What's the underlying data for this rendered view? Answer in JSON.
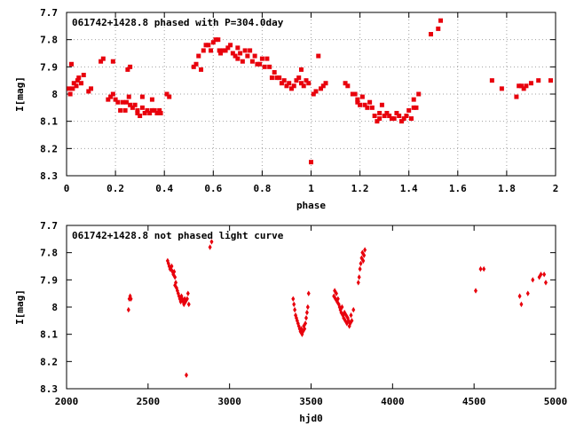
{
  "chart_data": [
    {
      "type": "scatter",
      "title": "061742+1428.8 phased with P=304.0day",
      "xlabel": "phase",
      "ylabel": "I[mag]",
      "xlim": [
        0,
        2
      ],
      "ylim": [
        8.3,
        7.7
      ],
      "y_inverted": true,
      "grid": true,
      "marker": "filled-square",
      "color": "#e8000c",
      "xticks": [
        "0",
        "0.2",
        "0.4",
        "0.6",
        "0.8",
        "1",
        "1.2",
        "1.4",
        "1.6",
        "1.8",
        "2"
      ],
      "yticks": [
        "7.7",
        "7.8",
        "7.9",
        "8",
        "8.1",
        "8.2",
        "8.3"
      ],
      "points": [
        [
          0.01,
          7.98
        ],
        [
          0.015,
          8.0
        ],
        [
          0.02,
          7.89
        ],
        [
          0.025,
          7.98
        ],
        [
          0.03,
          7.96
        ],
        [
          0.04,
          7.97
        ],
        [
          0.045,
          7.95
        ],
        [
          0.05,
          7.94
        ],
        [
          0.06,
          7.96
        ],
        [
          0.07,
          7.93
        ],
        [
          0.09,
          7.99
        ],
        [
          0.1,
          7.98
        ],
        [
          0.14,
          7.88
        ],
        [
          0.15,
          7.87
        ],
        [
          0.17,
          8.02
        ],
        [
          0.18,
          8.01
        ],
        [
          0.19,
          8.0
        ],
        [
          0.19,
          7.88
        ],
        [
          0.2,
          8.02
        ],
        [
          0.21,
          8.03
        ],
        [
          0.22,
          8.06
        ],
        [
          0.23,
          8.03
        ],
        [
          0.24,
          8.06
        ],
        [
          0.245,
          8.03
        ],
        [
          0.25,
          7.91
        ],
        [
          0.255,
          8.01
        ],
        [
          0.26,
          7.9
        ],
        [
          0.26,
          8.04
        ],
        [
          0.27,
          8.05
        ],
        [
          0.28,
          8.04
        ],
        [
          0.29,
          8.07
        ],
        [
          0.29,
          8.06
        ],
        [
          0.3,
          8.08
        ],
        [
          0.31,
          8.05
        ],
        [
          0.31,
          8.01
        ],
        [
          0.32,
          8.07
        ],
        [
          0.33,
          8.06
        ],
        [
          0.34,
          8.07
        ],
        [
          0.35,
          8.06
        ],
        [
          0.35,
          8.02
        ],
        [
          0.36,
          8.06
        ],
        [
          0.37,
          8.07
        ],
        [
          0.38,
          8.06
        ],
        [
          0.385,
          8.07
        ],
        [
          0.41,
          8.0
        ],
        [
          0.42,
          8.01
        ],
        [
          0.52,
          7.9
        ],
        [
          0.53,
          7.89
        ],
        [
          0.54,
          7.86
        ],
        [
          0.55,
          7.91
        ],
        [
          0.56,
          7.84
        ],
        [
          0.57,
          7.82
        ],
        [
          0.58,
          7.82
        ],
        [
          0.59,
          7.84
        ],
        [
          0.6,
          7.81
        ],
        [
          0.61,
          7.8
        ],
        [
          0.62,
          7.8
        ],
        [
          0.625,
          7.84
        ],
        [
          0.63,
          7.85
        ],
        [
          0.64,
          7.84
        ],
        [
          0.65,
          7.84
        ],
        [
          0.66,
          7.83
        ],
        [
          0.67,
          7.82
        ],
        [
          0.68,
          7.85
        ],
        [
          0.69,
          7.86
        ],
        [
          0.7,
          7.83
        ],
        [
          0.7,
          7.87
        ],
        [
          0.71,
          7.85
        ],
        [
          0.72,
          7.88
        ],
        [
          0.73,
          7.84
        ],
        [
          0.74,
          7.86
        ],
        [
          0.75,
          7.84
        ],
        [
          0.76,
          7.88
        ],
        [
          0.77,
          7.86
        ],
        [
          0.78,
          7.89
        ],
        [
          0.79,
          7.89
        ],
        [
          0.8,
          7.87
        ],
        [
          0.81,
          7.9
        ],
        [
          0.82,
          7.87
        ],
        [
          0.83,
          7.9
        ],
        [
          0.84,
          7.94
        ],
        [
          0.85,
          7.92
        ],
        [
          0.86,
          7.94
        ],
        [
          0.87,
          7.94
        ],
        [
          0.88,
          7.96
        ],
        [
          0.89,
          7.95
        ],
        [
          0.9,
          7.97
        ],
        [
          0.91,
          7.96
        ],
        [
          0.92,
          7.98
        ],
        [
          0.93,
          7.97
        ],
        [
          0.94,
          7.95
        ],
        [
          0.95,
          7.94
        ],
        [
          0.96,
          7.96
        ],
        [
          0.96,
          7.91
        ],
        [
          0.97,
          7.97
        ],
        [
          0.98,
          7.95
        ],
        [
          0.99,
          7.96
        ],
        [
          1.0,
          8.25
        ],
        [
          1.01,
          8.0
        ],
        [
          1.02,
          7.99
        ],
        [
          1.03,
          7.86
        ],
        [
          1.04,
          7.98
        ],
        [
          1.05,
          7.97
        ],
        [
          1.06,
          7.96
        ],
        [
          1.14,
          7.96
        ],
        [
          1.15,
          7.97
        ],
        [
          1.17,
          8.0
        ],
        [
          1.18,
          8.0
        ],
        [
          1.19,
          8.03
        ],
        [
          1.19,
          8.02
        ],
        [
          1.2,
          8.04
        ],
        [
          1.21,
          8.01
        ],
        [
          1.22,
          8.04
        ],
        [
          1.23,
          8.05
        ],
        [
          1.24,
          8.03
        ],
        [
          1.25,
          8.05
        ],
        [
          1.26,
          8.08
        ],
        [
          1.27,
          8.1
        ],
        [
          1.28,
          8.09
        ],
        [
          1.28,
          8.07
        ],
        [
          1.29,
          8.04
        ],
        [
          1.3,
          8.08
        ],
        [
          1.31,
          8.07
        ],
        [
          1.32,
          8.08
        ],
        [
          1.33,
          8.09
        ],
        [
          1.34,
          8.09
        ],
        [
          1.35,
          8.07
        ],
        [
          1.36,
          8.08
        ],
        [
          1.37,
          8.1
        ],
        [
          1.38,
          8.09
        ],
        [
          1.39,
          8.08
        ],
        [
          1.4,
          8.06
        ],
        [
          1.41,
          8.09
        ],
        [
          1.42,
          8.05
        ],
        [
          1.42,
          8.02
        ],
        [
          1.43,
          8.05
        ],
        [
          1.44,
          8.0
        ],
        [
          1.49,
          7.78
        ],
        [
          1.52,
          7.76
        ],
        [
          1.53,
          7.73
        ],
        [
          1.74,
          7.95
        ],
        [
          1.78,
          7.98
        ],
        [
          1.84,
          8.01
        ],
        [
          1.85,
          7.97
        ],
        [
          1.86,
          7.97
        ],
        [
          1.87,
          7.98
        ],
        [
          1.88,
          7.97
        ],
        [
          1.9,
          7.96
        ],
        [
          1.93,
          7.95
        ],
        [
          1.98,
          7.95
        ]
      ]
    },
    {
      "type": "scatter",
      "title": "061742+1428.8 not phased light curve",
      "xlabel": "hjd0",
      "ylabel": "I[mag]",
      "xlim": [
        2000,
        5000
      ],
      "ylim": [
        8.3,
        7.7
      ],
      "y_inverted": true,
      "grid": false,
      "marker": "filled-diamond",
      "color": "#e8000c",
      "xticks": [
        "2000",
        "2500",
        "3000",
        "3500",
        "4000",
        "4500",
        "5000"
      ],
      "yticks": [
        "7.7",
        "7.8",
        "7.9",
        "8",
        "8.1",
        "8.2",
        "8.3"
      ],
      "points": [
        [
          2380,
          8.01
        ],
        [
          2385,
          7.97
        ],
        [
          2390,
          7.96
        ],
        [
          2395,
          7.97
        ],
        [
          2620,
          7.83
        ],
        [
          2625,
          7.84
        ],
        [
          2630,
          7.85
        ],
        [
          2635,
          7.86
        ],
        [
          2640,
          7.86
        ],
        [
          2645,
          7.85
        ],
        [
          2650,
          7.87
        ],
        [
          2655,
          7.88
        ],
        [
          2660,
          7.87
        ],
        [
          2665,
          7.89
        ],
        [
          2665,
          7.92
        ],
        [
          2670,
          7.91
        ],
        [
          2675,
          7.93
        ],
        [
          2680,
          7.94
        ],
        [
          2685,
          7.95
        ],
        [
          2690,
          7.96
        ],
        [
          2695,
          7.97
        ],
        [
          2700,
          7.98
        ],
        [
          2705,
          7.96
        ],
        [
          2710,
          7.97
        ],
        [
          2715,
          7.98
        ],
        [
          2720,
          7.99
        ],
        [
          2725,
          7.97
        ],
        [
          2730,
          7.98
        ],
        [
          2735,
          8.25
        ],
        [
          2740,
          7.97
        ],
        [
          2745,
          7.95
        ],
        [
          2750,
          7.99
        ],
        [
          2880,
          7.78
        ],
        [
          2890,
          7.76
        ],
        [
          3390,
          7.97
        ],
        [
          3395,
          7.99
        ],
        [
          3400,
          8.01
        ],
        [
          3405,
          8.03
        ],
        [
          3410,
          8.04
        ],
        [
          3415,
          8.05
        ],
        [
          3420,
          8.06
        ],
        [
          3425,
          8.07
        ],
        [
          3430,
          8.08
        ],
        [
          3435,
          8.09
        ],
        [
          3440,
          8.08
        ],
        [
          3445,
          8.1
        ],
        [
          3450,
          8.09
        ],
        [
          3455,
          8.07
        ],
        [
          3460,
          8.08
        ],
        [
          3465,
          8.06
        ],
        [
          3470,
          8.04
        ],
        [
          3475,
          8.02
        ],
        [
          3480,
          8.0
        ],
        [
          3485,
          7.95
        ],
        [
          3640,
          7.96
        ],
        [
          3645,
          7.94
        ],
        [
          3650,
          7.97
        ],
        [
          3655,
          7.95
        ],
        [
          3660,
          7.98
        ],
        [
          3665,
          7.97
        ],
        [
          3670,
          7.99
        ],
        [
          3675,
          8.0
        ],
        [
          3680,
          8.01
        ],
        [
          3685,
          8.02
        ],
        [
          3690,
          8.0
        ],
        [
          3695,
          8.03
        ],
        [
          3700,
          8.04
        ],
        [
          3705,
          8.02
        ],
        [
          3710,
          8.05
        ],
        [
          3715,
          8.03
        ],
        [
          3720,
          8.06
        ],
        [
          3725,
          8.04
        ],
        [
          3730,
          8.05
        ],
        [
          3735,
          8.07
        ],
        [
          3740,
          8.06
        ],
        [
          3745,
          8.03
        ],
        [
          3750,
          8.05
        ],
        [
          3760,
          8.01
        ],
        [
          3790,
          7.91
        ],
        [
          3795,
          7.89
        ],
        [
          3800,
          7.86
        ],
        [
          3805,
          7.84
        ],
        [
          3810,
          7.82
        ],
        [
          3815,
          7.8
        ],
        [
          3820,
          7.83
        ],
        [
          3825,
          7.81
        ],
        [
          3830,
          7.79
        ],
        [
          4510,
          7.94
        ],
        [
          4540,
          7.86
        ],
        [
          4560,
          7.86
        ],
        [
          4780,
          7.96
        ],
        [
          4790,
          7.99
        ],
        [
          4830,
          7.95
        ],
        [
          4860,
          7.9
        ],
        [
          4900,
          7.89
        ],
        [
          4910,
          7.88
        ],
        [
          4930,
          7.88
        ],
        [
          4940,
          7.91
        ]
      ]
    }
  ]
}
